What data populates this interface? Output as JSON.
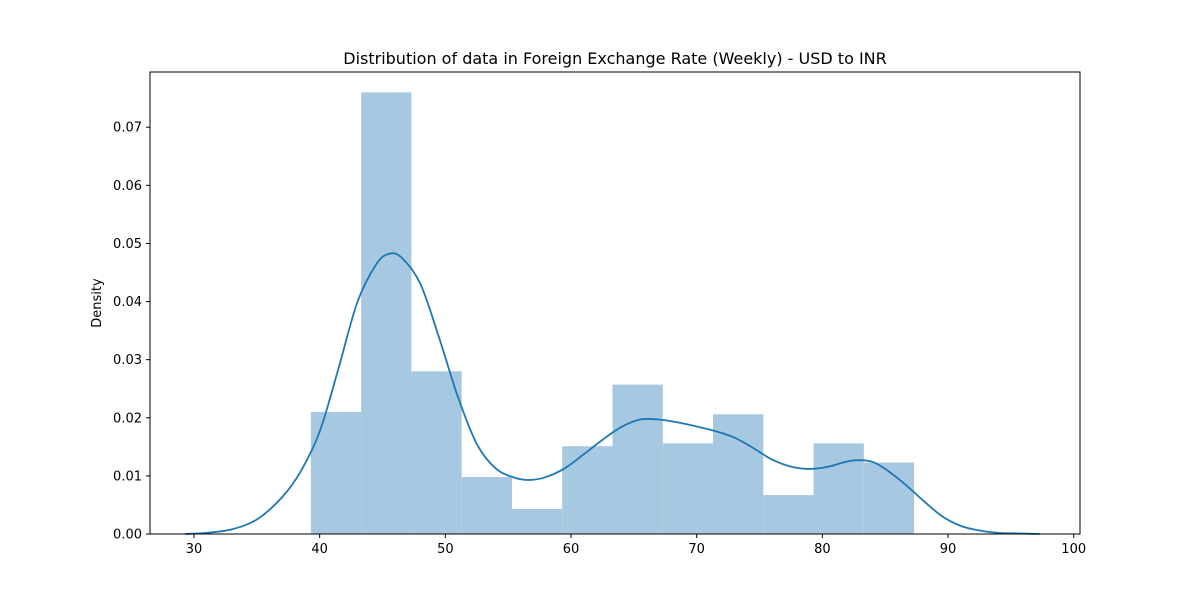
{
  "chart_data": {
    "type": "bar",
    "title": "Distribution of data in Foreign Exchange Rate (Weekly) - USD to INR",
    "xlabel": "",
    "ylabel": "Density",
    "xlim": [
      26.5,
      100.5
    ],
    "ylim": [
      0,
      0.0795
    ],
    "xticks": [
      30,
      40,
      50,
      60,
      70,
      80,
      90,
      100
    ],
    "yticks": [
      "0.00",
      "0.01",
      "0.02",
      "0.03",
      "0.04",
      "0.05",
      "0.06",
      "0.07"
    ],
    "yticks_values": [
      0,
      0.01,
      0.02,
      0.03,
      0.04,
      0.05,
      0.06,
      0.07
    ],
    "grid": false,
    "histogram": {
      "bin_edges": [
        39.3,
        43.3,
        47.3,
        51.3,
        55.3,
        59.3,
        63.3,
        67.3,
        71.3,
        75.3,
        79.3,
        83.3,
        87.3
      ],
      "values": [
        0.021,
        0.076,
        0.028,
        0.0098,
        0.0043,
        0.0151,
        0.0257,
        0.0156,
        0.0206,
        0.0067,
        0.0156,
        0.0123
      ],
      "color": "#a6c8e0"
    },
    "kde": {
      "color": "#1f77b4",
      "x": [
        29.3,
        31,
        33,
        35,
        37,
        38.5,
        40,
        41.5,
        43,
        44.5,
        45.5,
        46.5,
        48,
        49.5,
        51,
        52.5,
        54,
        55.5,
        56.7,
        58,
        59.5,
        61,
        62.5,
        64,
        65.5,
        67,
        68.5,
        70,
        71.5,
        73,
        74.5,
        76,
        77.5,
        79,
        80.5,
        82,
        83,
        84,
        85,
        86.5,
        88,
        89.5,
        91,
        92.5,
        94,
        95.5,
        97.3
      ],
      "y": [
        0.0,
        0.0002,
        0.0008,
        0.0025,
        0.0063,
        0.0108,
        0.0176,
        0.0285,
        0.0399,
        0.0464,
        0.0482,
        0.0476,
        0.0431,
        0.0338,
        0.0236,
        0.0155,
        0.0113,
        0.0097,
        0.0093,
        0.0098,
        0.0113,
        0.0137,
        0.0162,
        0.0184,
        0.0197,
        0.0197,
        0.0192,
        0.0185,
        0.0177,
        0.0166,
        0.0148,
        0.0128,
        0.0116,
        0.0112,
        0.0116,
        0.0125,
        0.0127,
        0.0124,
        0.0112,
        0.0087,
        0.0058,
        0.0031,
        0.0014,
        0.0006,
        0.0002,
        0.0001,
        0.0
      ]
    }
  }
}
